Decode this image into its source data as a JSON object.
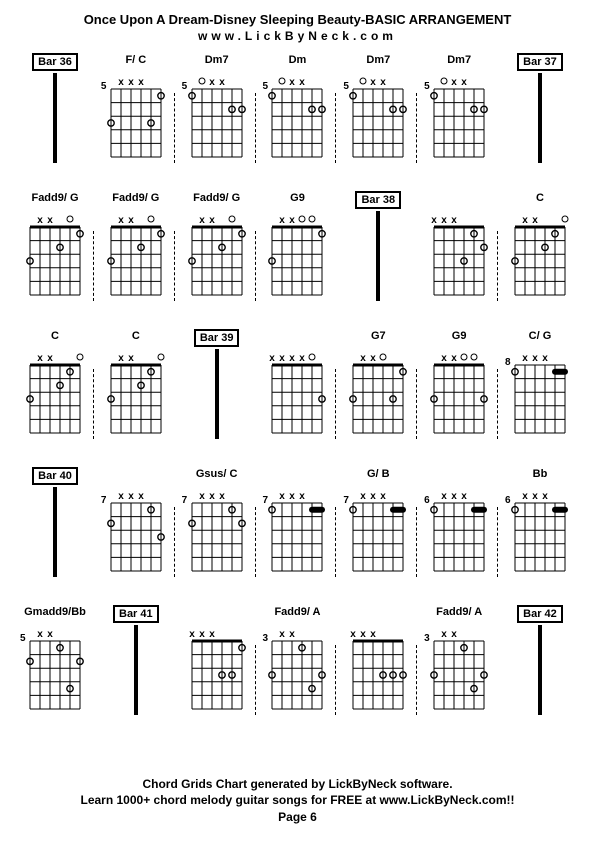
{
  "title": "Once Upon A Dream-Disney Sleeping Beauty-BASIC ARRANGEMENT",
  "subtitle": "www.LickByNeck.com",
  "footer_line1": "Chord Grids Chart generated by LickByNeck software.",
  "footer_line2": "Learn 1000+ chord melody guitar songs for FREE at www.LickByNeck.com!!",
  "footer_line3": "Page 6",
  "grid": {
    "strings": 6,
    "frets": 5,
    "w": 50,
    "h": 82,
    "dot_r": 3.2,
    "line_color": "#000000",
    "mute_font": 10
  },
  "rows": [
    [
      {
        "type": "bar",
        "label": "Bar 36",
        "boxed": true
      },
      {
        "type": "chord",
        "label": "F/ C",
        "fret": "5",
        "mutes": [
          1,
          2,
          3
        ],
        "open": [],
        "dots": [
          [
            0,
            3
          ],
          [
            4,
            3
          ],
          [
            5,
            1
          ]
        ],
        "dashed": true
      },
      {
        "type": "chord",
        "label": "Dm7",
        "fret": "5",
        "mutes": [
          2,
          3
        ],
        "open": [
          1
        ],
        "dots": [
          [
            0,
            1
          ],
          [
            4,
            2
          ],
          [
            5,
            2
          ]
        ],
        "dashed": true
      },
      {
        "type": "chord",
        "label": "Dm",
        "fret": "5",
        "mutes": [
          2,
          3
        ],
        "open": [
          1
        ],
        "dots": [
          [
            0,
            1
          ],
          [
            4,
            2
          ],
          [
            5,
            2
          ]
        ],
        "dashed": true
      },
      {
        "type": "chord",
        "label": "Dm7",
        "fret": "5",
        "mutes": [
          2,
          3
        ],
        "open": [
          1
        ],
        "dots": [
          [
            0,
            1
          ],
          [
            4,
            2
          ],
          [
            5,
            2
          ]
        ],
        "dashed": true
      },
      {
        "type": "chord",
        "label": "Dm7",
        "fret": "5",
        "mutes": [
          2,
          3
        ],
        "open": [
          1
        ],
        "dots": [
          [
            0,
            1
          ],
          [
            4,
            2
          ],
          [
            5,
            2
          ]
        ]
      },
      {
        "type": "bar",
        "label": "Bar 37",
        "boxed": true
      }
    ],
    [
      {
        "type": "chord",
        "label": "Fadd9/ G",
        "fret": "",
        "mutes": [
          1,
          2
        ],
        "open": [
          4
        ],
        "dots": [
          [
            0,
            3
          ],
          [
            3,
            2
          ],
          [
            5,
            1
          ]
        ],
        "dashed": true
      },
      {
        "type": "chord",
        "label": "Fadd9/ G",
        "fret": "",
        "mutes": [
          1,
          2
        ],
        "open": [
          4
        ],
        "dots": [
          [
            0,
            3
          ],
          [
            3,
            2
          ],
          [
            5,
            1
          ]
        ],
        "dashed": true
      },
      {
        "type": "chord",
        "label": "Fadd9/ G",
        "fret": "",
        "mutes": [
          1,
          2
        ],
        "open": [
          4
        ],
        "dots": [
          [
            0,
            3
          ],
          [
            3,
            2
          ],
          [
            5,
            1
          ]
        ],
        "dashed": true
      },
      {
        "type": "chord",
        "label": "G9",
        "fret": "",
        "mutes": [
          1,
          2
        ],
        "open": [
          3,
          4
        ],
        "dots": [
          [
            0,
            3
          ],
          [
            5,
            1
          ]
        ]
      },
      {
        "type": "bar",
        "label": "Bar 38",
        "boxed": true
      },
      {
        "type": "chord",
        "label": "",
        "fret": "",
        "mutes": [
          0,
          1,
          2
        ],
        "open": [],
        "dots": [
          [
            3,
            3
          ],
          [
            4,
            1
          ],
          [
            5,
            2
          ]
        ],
        "dashed": true
      },
      {
        "type": "chord",
        "label": "C",
        "fret": "",
        "mutes": [
          1,
          2
        ],
        "open": [
          5
        ],
        "dots": [
          [
            0,
            3
          ],
          [
            3,
            2
          ],
          [
            4,
            1
          ]
        ]
      }
    ],
    [
      {
        "type": "chord",
        "label": "C",
        "fret": "",
        "mutes": [
          1,
          2
        ],
        "open": [
          5
        ],
        "dots": [
          [
            0,
            3
          ],
          [
            3,
            2
          ],
          [
            4,
            1
          ]
        ],
        "dashed": true
      },
      {
        "type": "chord",
        "label": "C",
        "fret": "",
        "mutes": [
          1,
          2
        ],
        "open": [
          5
        ],
        "dots": [
          [
            0,
            3
          ],
          [
            3,
            2
          ],
          [
            4,
            1
          ]
        ]
      },
      {
        "type": "bar",
        "label": "Bar 39",
        "boxed": true
      },
      {
        "type": "chord",
        "label": "",
        "fret": "",
        "mutes": [
          0,
          1,
          2,
          3
        ],
        "open": [
          4
        ],
        "dots": [
          [
            5,
            3
          ]
        ],
        "dashed": true
      },
      {
        "type": "chord",
        "label": "G7",
        "fret": "",
        "mutes": [
          1,
          2
        ],
        "open": [
          3
        ],
        "dots": [
          [
            0,
            3
          ],
          [
            4,
            3
          ],
          [
            5,
            1
          ]
        ],
        "dashed": true
      },
      {
        "type": "chord",
        "label": "G9",
        "fret": "",
        "mutes": [
          1,
          2
        ],
        "open": [
          3,
          4
        ],
        "dots": [
          [
            0,
            3
          ],
          [
            5,
            3
          ]
        ],
        "dashed": true
      },
      {
        "type": "chord",
        "label": "C/ G",
        "fret": "8",
        "mutes": [
          1,
          2,
          3
        ],
        "open": [],
        "barre": {
          "fret": 1,
          "from": 4,
          "to": 5
        },
        "dots": [
          [
            0,
            1
          ]
        ]
      }
    ],
    [
      {
        "type": "bar",
        "label": "Bar 40",
        "boxed": true
      },
      {
        "type": "chord",
        "label": "",
        "fret": "7",
        "mutes": [
          1,
          2,
          3
        ],
        "open": [],
        "dots": [
          [
            0,
            2
          ],
          [
            4,
            1
          ],
          [
            5,
            3
          ]
        ],
        "dashed": true
      },
      {
        "type": "chord",
        "label": "Gsus/ C",
        "fret": "7",
        "mutes": [
          1,
          2,
          3
        ],
        "open": [],
        "dots": [
          [
            0,
            2
          ],
          [
            4,
            1
          ],
          [
            5,
            2
          ]
        ],
        "dashed": true
      },
      {
        "type": "chord",
        "label": "",
        "fret": "7",
        "mutes": [
          1,
          2,
          3
        ],
        "open": [],
        "barre": {
          "fret": 1,
          "from": 4,
          "to": 5
        },
        "dots": [
          [
            0,
            1
          ]
        ],
        "dashed": true
      },
      {
        "type": "chord",
        "label": "G/ B",
        "fret": "7",
        "mutes": [
          1,
          2,
          3
        ],
        "open": [],
        "barre": {
          "fret": 1,
          "from": 4,
          "to": 5
        },
        "dots": [
          [
            0,
            1
          ]
        ],
        "dashed": true
      },
      {
        "type": "chord",
        "label": "",
        "fret": "6",
        "mutes": [
          1,
          2,
          3
        ],
        "open": [],
        "barre": {
          "fret": 1,
          "from": 4,
          "to": 5
        },
        "dots": [
          [
            0,
            1
          ]
        ],
        "dashed": true
      },
      {
        "type": "chord",
        "label": "Bb",
        "fret": "6",
        "mutes": [
          1,
          2,
          3
        ],
        "open": [],
        "barre": {
          "fret": 1,
          "from": 4,
          "to": 5
        },
        "dots": [
          [
            0,
            1
          ]
        ]
      }
    ],
    [
      {
        "type": "chord",
        "label": "Gmadd9/Bb",
        "fret": "5",
        "mutes": [
          1,
          2
        ],
        "open": [],
        "dots": [
          [
            0,
            2
          ],
          [
            3,
            1
          ],
          [
            4,
            4
          ],
          [
            5,
            2
          ]
        ]
      },
      {
        "type": "bar",
        "label": "Bar 41",
        "boxed": true
      },
      {
        "type": "chord",
        "label": "",
        "fret": "",
        "mutes": [
          0,
          1,
          2
        ],
        "open": [],
        "dots": [
          [
            3,
            3
          ],
          [
            4,
            3
          ],
          [
            5,
            1
          ]
        ],
        "dashed": true
      },
      {
        "type": "chord",
        "label": "Fadd9/ A",
        "fret": "3",
        "mutes": [
          1,
          2
        ],
        "open": [],
        "dots": [
          [
            0,
            3
          ],
          [
            3,
            1
          ],
          [
            4,
            4
          ],
          [
            5,
            3
          ]
        ],
        "dashed": true
      },
      {
        "type": "chord",
        "label": "",
        "fret": "",
        "mutes": [
          0,
          1,
          2
        ],
        "open": [],
        "dots": [
          [
            3,
            3
          ],
          [
            4,
            3
          ],
          [
            5,
            3
          ]
        ],
        "dashed": true
      },
      {
        "type": "chord",
        "label": "Fadd9/ A",
        "fret": "3",
        "mutes": [
          1,
          2
        ],
        "open": [],
        "dots": [
          [
            0,
            3
          ],
          [
            3,
            1
          ],
          [
            4,
            4
          ],
          [
            5,
            3
          ]
        ]
      },
      {
        "type": "bar",
        "label": "Bar 42",
        "boxed": true
      }
    ]
  ]
}
